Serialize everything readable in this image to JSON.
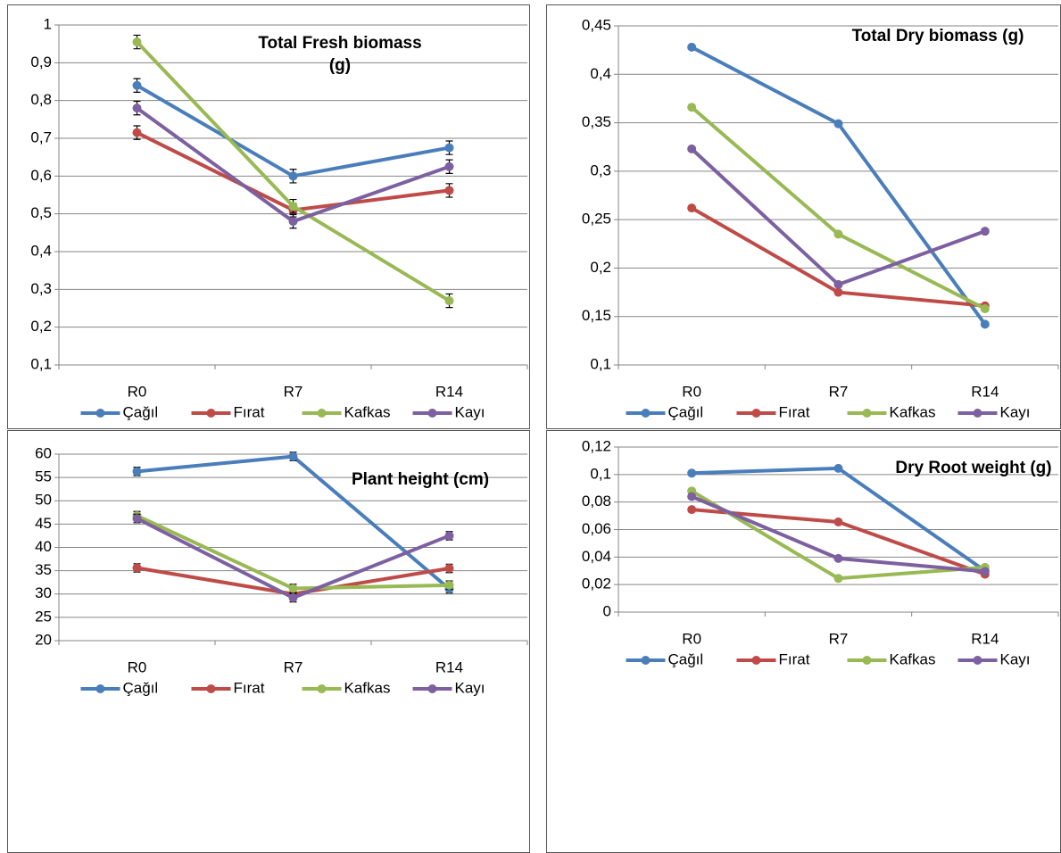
{
  "chart_data": [
    {
      "type": "line",
      "title": "Total Fresh biomass (g)",
      "categories": [
        "R0",
        "R7",
        "R14"
      ],
      "ylim": [
        0.1,
        1
      ],
      "yticks": [
        {
          "value": 0.1,
          "label": "0,1"
        },
        {
          "value": 0.2,
          "label": "0,2"
        },
        {
          "value": 0.3,
          "label": "0,3"
        },
        {
          "value": 0.4,
          "label": "0,4"
        },
        {
          "value": 0.5,
          "label": "0,5"
        },
        {
          "value": 0.6,
          "label": "0,6"
        },
        {
          "value": 0.7,
          "label": "0,7"
        },
        {
          "value": 0.8,
          "label": "0,8"
        },
        {
          "value": 0.9,
          "label": "0,9"
        },
        1
      ],
      "grid": true,
      "legend": "bottom",
      "series": [
        {
          "name": "Çağıl",
          "color": "#4a7ebb",
          "values": [
            0.84,
            0.6,
            0.675
          ],
          "errors": [
            0.018,
            0.018,
            0.018
          ]
        },
        {
          "name": "Fırat",
          "color": "#be4b48",
          "values": [
            0.715,
            0.51,
            0.562
          ],
          "errors": [
            0.018,
            0.018,
            0.018
          ]
        },
        {
          "name": "Kafkas",
          "color": "#98b954",
          "values": [
            0.955,
            0.52,
            0.27
          ],
          "errors": [
            0.018,
            0.018,
            0.018
          ]
        },
        {
          "name": "Kayı",
          "color": "#7d60a0",
          "values": [
            0.78,
            0.48,
            0.625
          ],
          "errors": [
            0.018,
            0.018,
            0.018
          ]
        }
      ]
    },
    {
      "type": "line",
      "title": "Total Dry biomass (g)",
      "categories": [
        "R0",
        "R7",
        "R14"
      ],
      "ylim": [
        0.1,
        0.45
      ],
      "yticks": [
        {
          "value": 0.1,
          "label": "0,1"
        },
        {
          "value": 0.15,
          "label": "0,15"
        },
        {
          "value": 0.2,
          "label": "0,2"
        },
        {
          "value": 0.25,
          "label": "0,25"
        },
        {
          "value": 0.3,
          "label": "0,3"
        },
        {
          "value": 0.35,
          "label": "0,35"
        },
        {
          "value": 0.4,
          "label": "0,4"
        },
        {
          "value": 0.45,
          "label": "0,45"
        }
      ],
      "grid": true,
      "legend": "bottom",
      "series": [
        {
          "name": "Çağıl",
          "color": "#4a7ebb",
          "values": [
            0.428,
            0.349,
            0.142
          ],
          "errors": [
            0.002,
            0.002,
            0.002
          ]
        },
        {
          "name": "Fırat",
          "color": "#be4b48",
          "values": [
            0.262,
            0.175,
            0.161
          ],
          "errors": [
            0.002,
            0.002,
            0.002
          ]
        },
        {
          "name": "Kafkas",
          "color": "#98b954",
          "values": [
            0.366,
            0.235,
            0.158
          ],
          "errors": [
            0.002,
            0.002,
            0.002
          ]
        },
        {
          "name": "Kayı",
          "color": "#7d60a0",
          "values": [
            0.323,
            0.183,
            0.238
          ],
          "errors": [
            0.002,
            0.002,
            0.002
          ]
        }
      ]
    },
    {
      "type": "line",
      "title": "Plant height (cm)",
      "categories": [
        "R0",
        "R7",
        "R14"
      ],
      "ylim": [
        20,
        60
      ],
      "yticks": [
        20,
        25,
        30,
        35,
        40,
        45,
        50,
        55,
        60
      ],
      "grid": true,
      "legend": "bottom",
      "series": [
        {
          "name": "Çağıl",
          "color": "#4a7ebb",
          "values": [
            56.3,
            59.5,
            31.1
          ],
          "errors": [
            0.9,
            0.9,
            0.9
          ]
        },
        {
          "name": "Fırat",
          "color": "#be4b48",
          "values": [
            35.6,
            30,
            35.5
          ],
          "errors": [
            0.9,
            0.9,
            0.9
          ]
        },
        {
          "name": "Kafkas",
          "color": "#98b954",
          "values": [
            46.8,
            31.2,
            31.9
          ],
          "errors": [
            0.9,
            0.9,
            0.9
          ]
        },
        {
          "name": "Kayı",
          "color": "#7d60a0",
          "values": [
            46.2,
            29.2,
            42.5
          ],
          "errors": [
            0.9,
            0.9,
            0.9
          ]
        }
      ]
    },
    {
      "type": "line",
      "title": "Dry Root weight (g)",
      "categories": [
        "R0",
        "R7",
        "R14"
      ],
      "ylim": [
        0,
        0.12
      ],
      "yticks": [
        0,
        {
          "value": 0.02,
          "label": "0,02"
        },
        {
          "value": 0.04,
          "label": "0,04"
        },
        {
          "value": 0.06,
          "label": "0,06"
        },
        {
          "value": 0.08,
          "label": "0,08"
        },
        {
          "value": 0.1,
          "label": "0,1"
        },
        {
          "value": 0.12,
          "label": "0,12"
        }
      ],
      "grid": true,
      "legend": "bottom",
      "series": [
        {
          "name": "Çağıl",
          "color": "#4a7ebb",
          "values": [
            0.101,
            0.1045,
            0.03
          ],
          "errors": [
            0.0015,
            0.0015,
            0.0015
          ]
        },
        {
          "name": "Fırat",
          "color": "#be4b48",
          "values": [
            0.0745,
            0.0655,
            0.0275
          ],
          "errors": [
            0.0015,
            0.0015,
            0.0015
          ]
        },
        {
          "name": "Kafkas",
          "color": "#98b954",
          "values": [
            0.088,
            0.0245,
            0.0325
          ],
          "errors": [
            0.0015,
            0.0015,
            0.0015
          ]
        },
        {
          "name": "Kayı",
          "color": "#7d60a0",
          "values": [
            0.084,
            0.039,
            0.0295
          ],
          "errors": [
            0.0015,
            0.0015,
            0.0015
          ]
        }
      ]
    }
  ]
}
